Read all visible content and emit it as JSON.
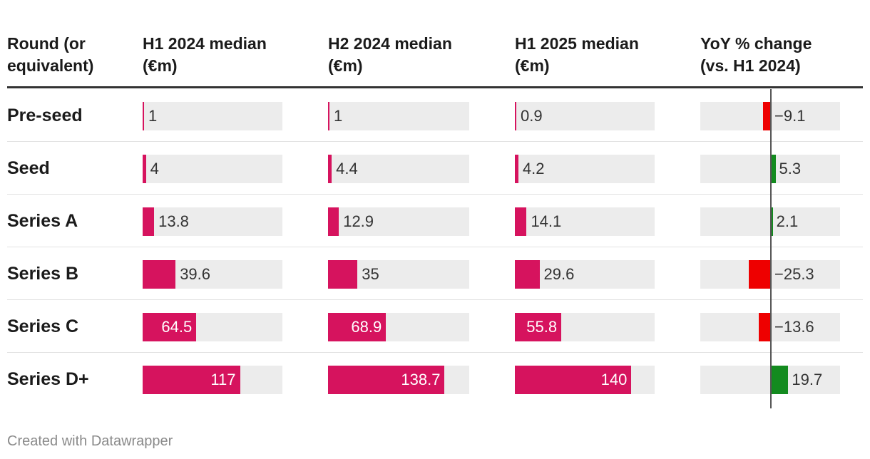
{
  "chart_data": {
    "type": "table",
    "columns": [
      "Round (or\nequivalent)",
      "H1 2024 median\n(€m)",
      "H2 2024 median\n(€m)",
      "H1 2025 median\n(€m)",
      "YoY % change\n(vs. H1 2024)"
    ],
    "rows": [
      {
        "round": "Pre-seed",
        "h1_2024": 1,
        "h2_2024": 1,
        "h1_2025": 0.9,
        "yoy": -9.1,
        "yoy_label": "−9.1"
      },
      {
        "round": "Seed",
        "h1_2024": 4,
        "h2_2024": 4.4,
        "h1_2025": 4.2,
        "yoy": 5.3,
        "yoy_label": "5.3"
      },
      {
        "round": "Series A",
        "h1_2024": 13.8,
        "h2_2024": 12.9,
        "h1_2025": 14.1,
        "yoy": 2.1,
        "yoy_label": "2.1"
      },
      {
        "round": "Series B",
        "h1_2024": 39.6,
        "h2_2024": 35,
        "h1_2025": 29.6,
        "yoy": -25.3,
        "yoy_label": "−25.3"
      },
      {
        "round": "Series C",
        "h1_2024": 64.5,
        "h2_2024": 68.9,
        "h1_2025": 55.8,
        "yoy": -13.6,
        "yoy_label": "−13.6"
      },
      {
        "round": "Series D+",
        "h1_2024": 117,
        "h2_2024": 138.7,
        "h1_2025": 140,
        "yoy": 19.7,
        "yoy_label": "19.7"
      }
    ],
    "bar_max": 168,
    "yoy_range": [
      -80,
      80
    ],
    "colors": {
      "bar": "#d6135e",
      "negative": "#ee0000",
      "positive": "#138b1f",
      "track": "#ececec"
    }
  },
  "footer": "Created with Datawrapper"
}
